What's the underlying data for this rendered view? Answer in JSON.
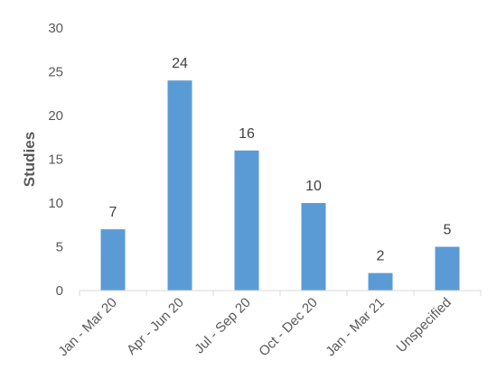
{
  "chart_data": {
    "type": "bar",
    "title": "",
    "xlabel": "",
    "ylabel": "Studies",
    "categories": [
      "Jan - Mar 20",
      "Apr - Jun 20",
      "Jul - Sep 20",
      "Oct - Dec 20",
      "Jan - Mar 21",
      "Unspecified"
    ],
    "values": [
      7,
      24,
      16,
      10,
      2,
      5
    ],
    "data_labels": [
      "7",
      "24",
      "16",
      "10",
      "2",
      "5"
    ],
    "y_ticks": [
      0,
      5,
      10,
      15,
      20,
      25,
      30
    ],
    "ylim": [
      0,
      30
    ],
    "grid": false,
    "legend": "none",
    "bar_color": "#5B9BD5",
    "axis_color": "#D9D9D9"
  }
}
